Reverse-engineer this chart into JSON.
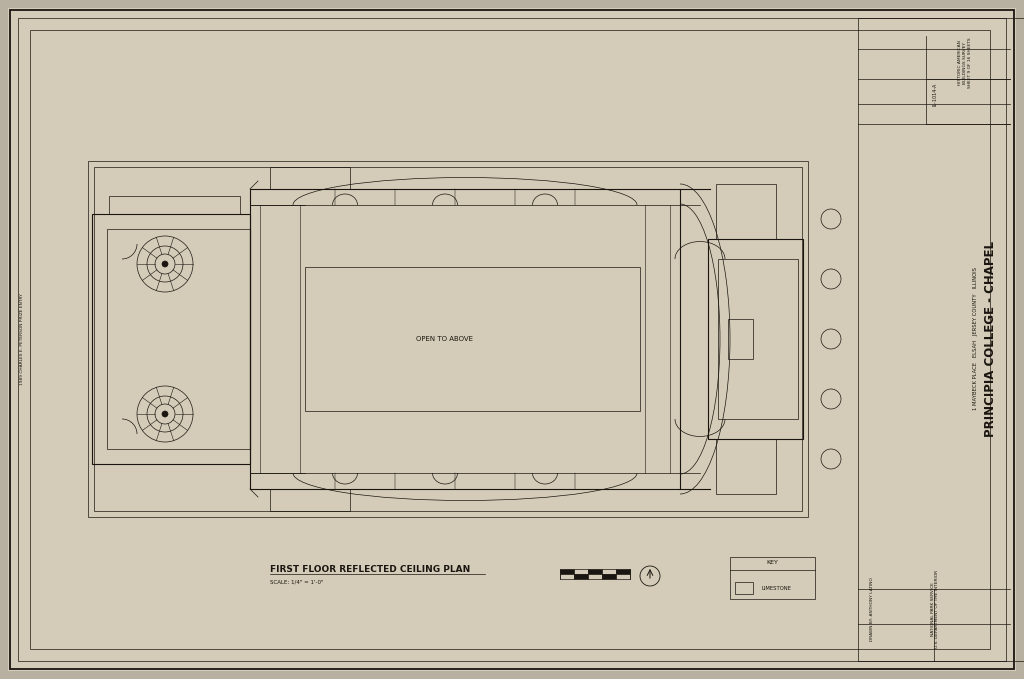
{
  "bg_color": "#b8b0a0",
  "paper_color": "#d4ccb8",
  "paper_inner": "#ccc4b0",
  "line_color": "#1a1510",
  "title_main": "PRINCIPIA COLLEGE - CHAPEL",
  "title_sub1": "1 MAYBECK PLACE   ELSAH   JERSEY COUNTY   ILLINOIS",
  "plan_title": "FIRST FLOOR REFLECTED CEILING PLAN",
  "plan_scale": "SCALE: 1/4\" = 1'-0\"",
  "survey_title": "HISTORIC AMERICAN\nBUILDINGS SURVEY\nSHEET 9 OF 16 SHEETS",
  "habs_number": "IL-1014-A",
  "drawn_by": "DRAWN BY: ANTHONY LATINO",
  "agency": "NATIONAL PARK SERVICE\nU.S. DEPARTMENT OF THE INTERIOR",
  "open_to_above": "OPEN TO ABOVE",
  "key_label": "KEY",
  "limestone_label": "LIMESTONE",
  "left_vert_text": "1989 CHARLES E. PETERSON PRIZE ENTRY"
}
